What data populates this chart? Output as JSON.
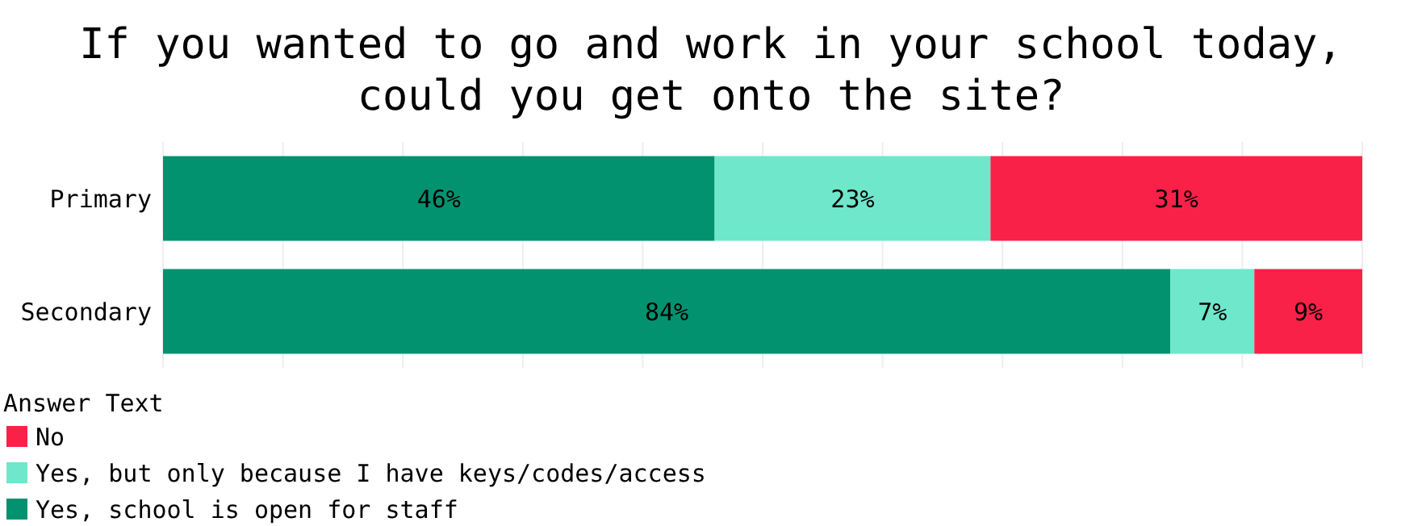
{
  "chart_data": {
    "type": "bar",
    "orientation": "horizontal",
    "stacked": true,
    "title": "If you wanted to go and work in your school today,\ncould you get onto the site?",
    "categories": [
      "Primary",
      "Secondary"
    ],
    "series": [
      {
        "name": "Yes, school is open for staff",
        "color": "#03926f",
        "values": [
          46,
          84
        ],
        "value_labels": [
          "46%",
          "84%"
        ]
      },
      {
        "name": "Yes, but only because I have keys/codes/access",
        "color": "#6ee7cb",
        "values": [
          23,
          7
        ],
        "value_labels": [
          "23%",
          "7%"
        ]
      },
      {
        "name": "No",
        "color": "#fa2148",
        "values": [
          31,
          9
        ],
        "value_labels": [
          "31%",
          "9%"
        ]
      }
    ],
    "xlim": [
      0,
      100
    ],
    "xticks": [
      {
        "value": 0,
        "label": null
      },
      {
        "value": 10,
        "label": null
      },
      {
        "value": 20,
        "label": null
      },
      {
        "value": 30,
        "label": null
      },
      {
        "value": 40,
        "label": null
      },
      {
        "value": 50,
        "label": null
      },
      {
        "value": 60,
        "label": null
      },
      {
        "value": 70,
        "label": null
      },
      {
        "value": 80,
        "label": null
      },
      {
        "value": 90,
        "label": null
      },
      {
        "value": 100,
        "label": null
      }
    ],
    "tick_labels": "y",
    "grid": "x",
    "legend": "bottom",
    "legend_title": "Answer Text"
  }
}
